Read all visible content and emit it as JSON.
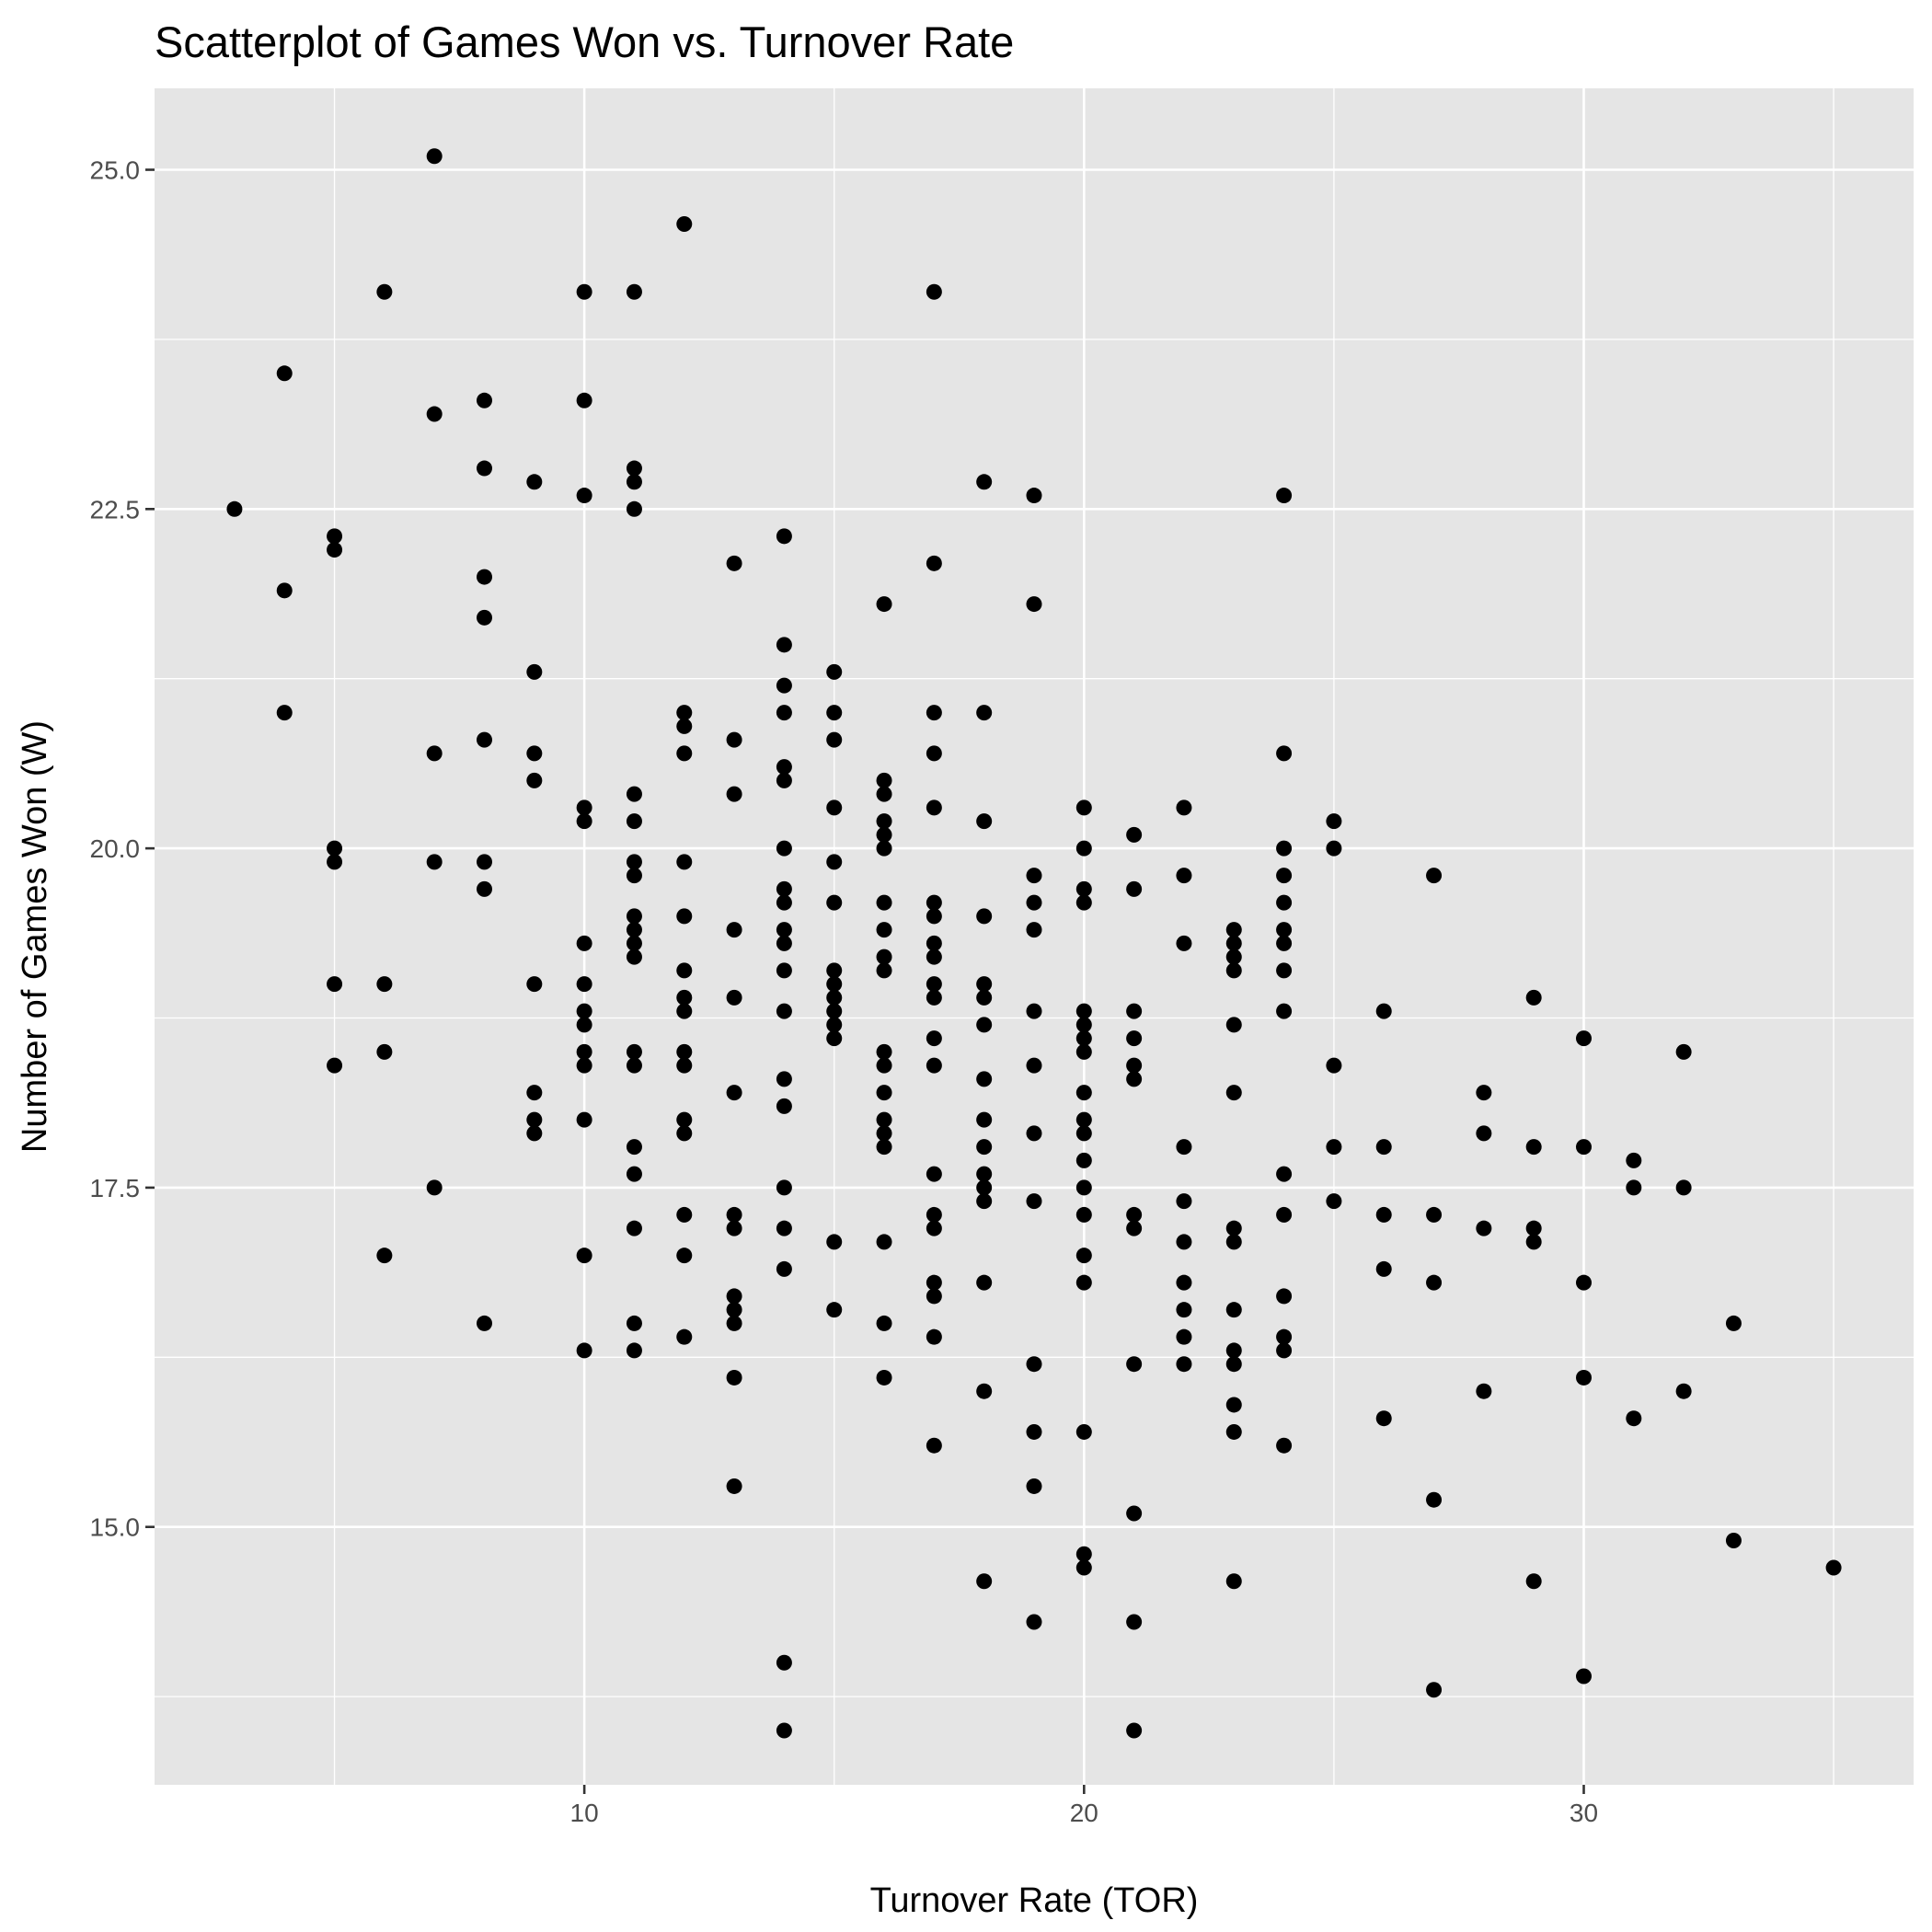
{
  "chart_data": {
    "type": "scatter",
    "title": "Scatterplot of Games Won vs. Turnover Rate",
    "xlabel": "Turnover Rate (TOR)",
    "ylabel": "Number of Games Won (W)",
    "xlim": [
      1.4,
      36.6
    ],
    "ylim": [
      13.1,
      25.6
    ],
    "x_ticks": [
      10,
      20,
      30
    ],
    "x_tick_labels": [
      "10",
      "20",
      "30"
    ],
    "x_minor_ticks": [
      5,
      15,
      25,
      35
    ],
    "y_ticks": [
      15.0,
      17.5,
      20.0,
      22.5,
      25.0
    ],
    "y_tick_labels": [
      "15.0",
      "17.5",
      "20.0",
      "22.5",
      "25.0"
    ],
    "y_minor_ticks": [
      13.75,
      16.25,
      18.75,
      21.25,
      23.75
    ],
    "grid": true,
    "colors": {
      "panel": "#e5e5e5",
      "grid": "#ffffff",
      "point": "#000000",
      "tick_label": "#4d4d4d"
    },
    "points": [
      [
        3,
        22.5
      ],
      [
        4,
        23.5
      ],
      [
        4,
        21.9
      ],
      [
        4,
        21.0
      ],
      [
        5,
        22.3
      ],
      [
        5,
        22.2
      ],
      [
        5,
        20.0
      ],
      [
        5,
        19.9
      ],
      [
        5,
        19.0
      ],
      [
        5,
        18.4
      ],
      [
        6,
        24.1
      ],
      [
        6,
        19.0
      ],
      [
        6,
        18.5
      ],
      [
        6,
        17.0
      ],
      [
        7,
        25.1
      ],
      [
        7,
        23.2
      ],
      [
        7,
        20.7
      ],
      [
        7,
        19.9
      ],
      [
        7,
        17.5
      ],
      [
        8,
        23.3
      ],
      [
        8,
        22.8
      ],
      [
        8,
        22.0
      ],
      [
        8,
        21.7
      ],
      [
        8,
        20.8
      ],
      [
        8,
        19.9
      ],
      [
        8,
        19.7
      ],
      [
        8,
        16.5
      ],
      [
        9,
        22.7
      ],
      [
        9,
        21.3
      ],
      [
        9,
        20.7
      ],
      [
        9,
        20.5
      ],
      [
        9,
        19.0
      ],
      [
        9,
        18.2
      ],
      [
        9,
        18.0
      ],
      [
        9,
        17.9
      ],
      [
        10,
        24.1
      ],
      [
        10,
        23.3
      ],
      [
        10,
        22.6
      ],
      [
        10,
        20.3
      ],
      [
        10,
        20.2
      ],
      [
        10,
        19.3
      ],
      [
        10,
        19.0
      ],
      [
        10,
        18.8
      ],
      [
        10,
        18.7
      ],
      [
        10,
        18.5
      ],
      [
        10,
        18.4
      ],
      [
        10,
        18.0
      ],
      [
        10,
        17.0
      ],
      [
        10,
        16.3
      ],
      [
        11,
        24.1
      ],
      [
        11,
        22.8
      ],
      [
        11,
        22.7
      ],
      [
        11,
        22.5
      ],
      [
        11,
        20.4
      ],
      [
        11,
        20.2
      ],
      [
        11,
        19.9
      ],
      [
        11,
        19.8
      ],
      [
        11,
        19.5
      ],
      [
        11,
        19.4
      ],
      [
        11,
        19.3
      ],
      [
        11,
        19.2
      ],
      [
        11,
        18.5
      ],
      [
        11,
        18.4
      ],
      [
        11,
        17.8
      ],
      [
        11,
        17.6
      ],
      [
        11,
        17.2
      ],
      [
        11,
        16.5
      ],
      [
        11,
        16.3
      ],
      [
        12,
        24.6
      ],
      [
        12,
        21.0
      ],
      [
        12,
        20.9
      ],
      [
        12,
        20.7
      ],
      [
        12,
        19.9
      ],
      [
        12,
        19.5
      ],
      [
        12,
        19.1
      ],
      [
        12,
        18.9
      ],
      [
        12,
        18.8
      ],
      [
        12,
        18.5
      ],
      [
        12,
        18.4
      ],
      [
        12,
        18.0
      ],
      [
        12,
        17.9
      ],
      [
        12,
        17.3
      ],
      [
        12,
        17.0
      ],
      [
        12,
        16.4
      ],
      [
        13,
        22.1
      ],
      [
        13,
        20.8
      ],
      [
        13,
        20.4
      ],
      [
        13,
        19.4
      ],
      [
        13,
        18.9
      ],
      [
        13,
        18.2
      ],
      [
        13,
        17.3
      ],
      [
        13,
        17.2
      ],
      [
        13,
        16.7
      ],
      [
        13,
        16.6
      ],
      [
        13,
        16.5
      ],
      [
        13,
        16.1
      ],
      [
        13,
        15.3
      ],
      [
        14,
        22.3
      ],
      [
        14,
        21.5
      ],
      [
        14,
        21.2
      ],
      [
        14,
        21.0
      ],
      [
        14,
        20.6
      ],
      [
        14,
        20.5
      ],
      [
        14,
        20.0
      ],
      [
        14,
        19.7
      ],
      [
        14,
        19.6
      ],
      [
        14,
        19.4
      ],
      [
        14,
        19.3
      ],
      [
        14,
        19.1
      ],
      [
        14,
        18.8
      ],
      [
        14,
        18.3
      ],
      [
        14,
        18.1
      ],
      [
        14,
        17.5
      ],
      [
        14,
        17.2
      ],
      [
        14,
        16.9
      ],
      [
        14,
        14.0
      ],
      [
        14,
        13.5
      ],
      [
        15,
        21.3
      ],
      [
        15,
        21.0
      ],
      [
        15,
        20.8
      ],
      [
        15,
        20.3
      ],
      [
        15,
        19.9
      ],
      [
        15,
        19.6
      ],
      [
        15,
        19.1
      ],
      [
        15,
        19.0
      ],
      [
        15,
        18.9
      ],
      [
        15,
        18.8
      ],
      [
        15,
        18.7
      ],
      [
        15,
        18.6
      ],
      [
        15,
        17.1
      ],
      [
        15,
        16.6
      ],
      [
        16,
        21.8
      ],
      [
        16,
        20.5
      ],
      [
        16,
        20.4
      ],
      [
        16,
        20.2
      ],
      [
        16,
        20.1
      ],
      [
        16,
        20.0
      ],
      [
        16,
        19.6
      ],
      [
        16,
        19.4
      ],
      [
        16,
        19.2
      ],
      [
        16,
        19.1
      ],
      [
        16,
        18.5
      ],
      [
        16,
        18.4
      ],
      [
        16,
        18.2
      ],
      [
        16,
        18.0
      ],
      [
        16,
        17.9
      ],
      [
        16,
        17.8
      ],
      [
        16,
        17.1
      ],
      [
        16,
        16.5
      ],
      [
        16,
        16.1
      ],
      [
        17,
        24.1
      ],
      [
        17,
        22.1
      ],
      [
        17,
        21.0
      ],
      [
        17,
        20.7
      ],
      [
        17,
        20.3
      ],
      [
        17,
        19.6
      ],
      [
        17,
        19.5
      ],
      [
        17,
        19.3
      ],
      [
        17,
        19.2
      ],
      [
        17,
        19.0
      ],
      [
        17,
        18.9
      ],
      [
        17,
        18.6
      ],
      [
        17,
        18.4
      ],
      [
        17,
        17.6
      ],
      [
        17,
        17.3
      ],
      [
        17,
        17.2
      ],
      [
        17,
        16.8
      ],
      [
        17,
        16.7
      ],
      [
        17,
        16.4
      ],
      [
        17,
        15.6
      ],
      [
        18,
        22.7
      ],
      [
        18,
        21.0
      ],
      [
        18,
        20.2
      ],
      [
        18,
        19.5
      ],
      [
        18,
        19.0
      ],
      [
        18,
        18.9
      ],
      [
        18,
        18.7
      ],
      [
        18,
        18.3
      ],
      [
        18,
        18.0
      ],
      [
        18,
        17.8
      ],
      [
        18,
        17.6
      ],
      [
        18,
        17.5
      ],
      [
        18,
        17.4
      ],
      [
        18,
        16.8
      ],
      [
        18,
        16.0
      ],
      [
        18,
        14.6
      ],
      [
        19,
        22.6
      ],
      [
        19,
        21.8
      ],
      [
        19,
        19.8
      ],
      [
        19,
        19.6
      ],
      [
        19,
        19.4
      ],
      [
        19,
        18.8
      ],
      [
        19,
        18.4
      ],
      [
        19,
        17.9
      ],
      [
        19,
        17.4
      ],
      [
        19,
        16.2
      ],
      [
        19,
        15.7
      ],
      [
        19,
        15.3
      ],
      [
        19,
        14.3
      ],
      [
        20,
        20.3
      ],
      [
        20,
        20.0
      ],
      [
        20,
        19.7
      ],
      [
        20,
        19.6
      ],
      [
        20,
        18.8
      ],
      [
        20,
        18.7
      ],
      [
        20,
        18.6
      ],
      [
        20,
        18.5
      ],
      [
        20,
        18.2
      ],
      [
        20,
        18.0
      ],
      [
        20,
        17.9
      ],
      [
        20,
        17.7
      ],
      [
        20,
        17.5
      ],
      [
        20,
        17.3
      ],
      [
        20,
        17.0
      ],
      [
        20,
        16.8
      ],
      [
        20,
        15.7
      ],
      [
        20,
        14.8
      ],
      [
        20,
        14.7
      ],
      [
        21,
        20.1
      ],
      [
        21,
        19.7
      ],
      [
        21,
        18.8
      ],
      [
        21,
        18.6
      ],
      [
        21,
        18.4
      ],
      [
        21,
        18.3
      ],
      [
        21,
        17.3
      ],
      [
        21,
        17.2
      ],
      [
        21,
        16.2
      ],
      [
        21,
        15.1
      ],
      [
        21,
        14.3
      ],
      [
        21,
        13.5
      ],
      [
        22,
        20.3
      ],
      [
        22,
        19.8
      ],
      [
        22,
        19.3
      ],
      [
        22,
        17.8
      ],
      [
        22,
        17.4
      ],
      [
        22,
        17.1
      ],
      [
        22,
        16.8
      ],
      [
        22,
        16.6
      ],
      [
        22,
        16.4
      ],
      [
        22,
        16.2
      ],
      [
        23,
        19.4
      ],
      [
        23,
        19.3
      ],
      [
        23,
        19.2
      ],
      [
        23,
        19.1
      ],
      [
        23,
        18.7
      ],
      [
        23,
        18.2
      ],
      [
        23,
        17.2
      ],
      [
        23,
        17.1
      ],
      [
        23,
        16.6
      ],
      [
        23,
        16.3
      ],
      [
        23,
        16.2
      ],
      [
        23,
        15.9
      ],
      [
        23,
        15.7
      ],
      [
        23,
        14.6
      ],
      [
        24,
        22.6
      ],
      [
        24,
        20.7
      ],
      [
        24,
        20.0
      ],
      [
        24,
        19.8
      ],
      [
        24,
        19.6
      ],
      [
        24,
        19.4
      ],
      [
        24,
        19.3
      ],
      [
        24,
        19.1
      ],
      [
        24,
        18.8
      ],
      [
        24,
        17.6
      ],
      [
        24,
        17.3
      ],
      [
        24,
        16.7
      ],
      [
        24,
        16.4
      ],
      [
        24,
        16.3
      ],
      [
        24,
        15.6
      ],
      [
        25,
        20.2
      ],
      [
        25,
        20.0
      ],
      [
        25,
        18.4
      ],
      [
        25,
        17.8
      ],
      [
        25,
        17.4
      ],
      [
        26,
        18.8
      ],
      [
        26,
        17.8
      ],
      [
        26,
        17.3
      ],
      [
        26,
        16.9
      ],
      [
        26,
        15.8
      ],
      [
        27,
        19.8
      ],
      [
        27,
        17.3
      ],
      [
        27,
        16.8
      ],
      [
        27,
        15.2
      ],
      [
        27,
        13.8
      ],
      [
        28,
        18.2
      ],
      [
        28,
        17.9
      ],
      [
        28,
        17.2
      ],
      [
        28,
        16.0
      ],
      [
        29,
        18.9
      ],
      [
        29,
        17.8
      ],
      [
        29,
        17.2
      ],
      [
        29,
        17.1
      ],
      [
        29,
        14.6
      ],
      [
        30,
        18.6
      ],
      [
        30,
        17.8
      ],
      [
        30,
        16.8
      ],
      [
        30,
        16.1
      ],
      [
        30,
        13.9
      ],
      [
        31,
        17.7
      ],
      [
        31,
        17.5
      ],
      [
        31,
        15.8
      ],
      [
        32,
        18.5
      ],
      [
        32,
        17.5
      ],
      [
        32,
        16.0
      ],
      [
        33,
        16.5
      ],
      [
        33,
        14.9
      ],
      [
        35,
        14.7
      ]
    ]
  }
}
